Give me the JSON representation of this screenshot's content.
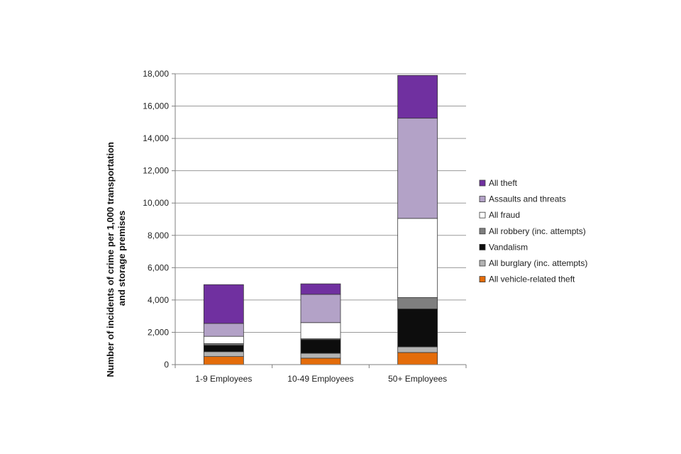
{
  "chart_data": {
    "type": "bar",
    "stacked": true,
    "title": "",
    "xlabel": "",
    "ylabel_lines": [
      "Number of incidents of crime per 1,000 transportation",
      "and storage premises"
    ],
    "ylim": [
      0,
      18000
    ],
    "ytick_step": 2000,
    "ytick_labels": [
      "0",
      "2,000",
      "4,000",
      "6,000",
      "8,000",
      "10,000",
      "12,000",
      "14,000",
      "16,000",
      "18,000"
    ],
    "grid": true,
    "legend_position": "right",
    "categories": [
      "1-9 Employees",
      "10-49 Employees",
      "50+ Employees"
    ],
    "series": [
      {
        "name": "All vehicle-related theft",
        "color": "#e46c0a",
        "values": [
          500,
          400,
          750
        ]
      },
      {
        "name": "All burglary (inc. attempts)",
        "color": "#b3b3b3",
        "values": [
          300,
          300,
          350
        ]
      },
      {
        "name": "Vandalism",
        "color": "#0d0d0d",
        "values": [
          400,
          850,
          2350
        ]
      },
      {
        "name": "All robbery (inc. attempts)",
        "color": "#7f7f7f",
        "values": [
          100,
          50,
          700
        ]
      },
      {
        "name": "All fraud",
        "color": "#ffffff",
        "values": [
          450,
          1000,
          4900
        ]
      },
      {
        "name": "Assaults and threats",
        "color": "#b3a2c7",
        "values": [
          800,
          1750,
          6200
        ]
      },
      {
        "name": "All theft",
        "color": "#7030a0",
        "values": [
          2400,
          650,
          2650
        ]
      }
    ]
  }
}
